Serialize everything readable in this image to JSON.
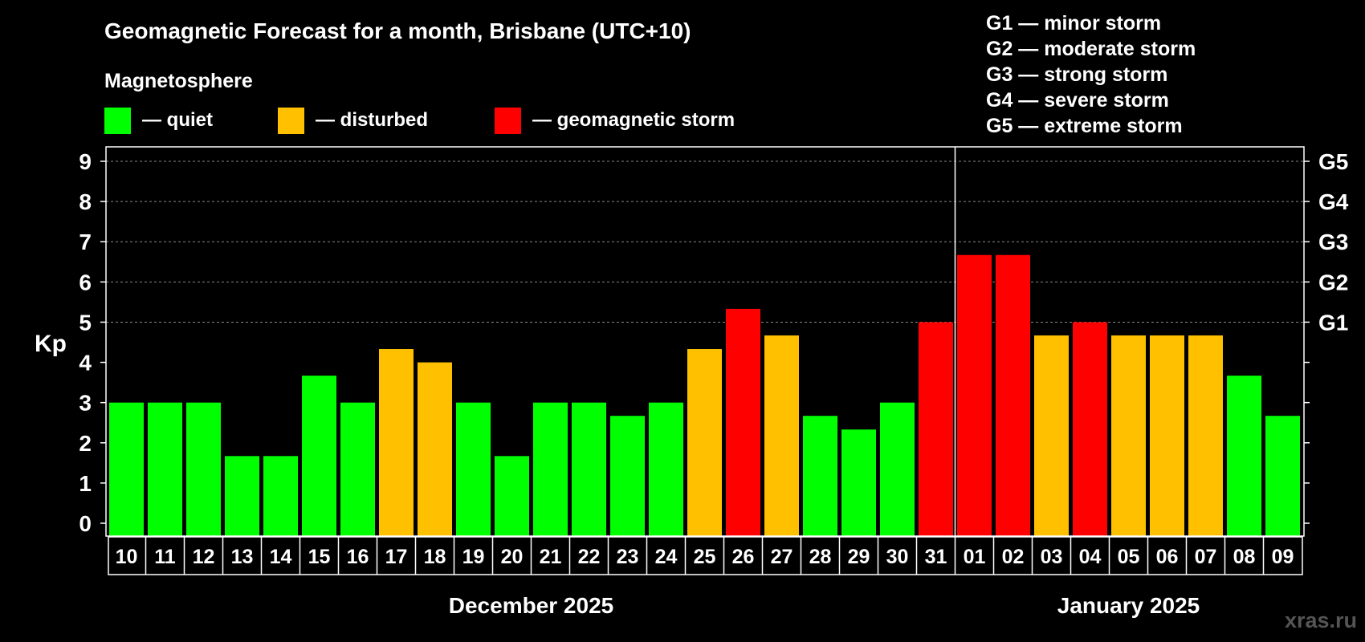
{
  "chart_data": {
    "type": "bar",
    "title": "Geomagnetic Forecast for a month, Brisbane (UTC+10)",
    "legend_title": "Magnetosphere",
    "legend": [
      {
        "key": "quiet",
        "label": "— quiet",
        "color": "#00ff00"
      },
      {
        "key": "disturbed",
        "label": "— disturbed",
        "color": "#ffc000"
      },
      {
        "key": "storm",
        "label": "— geomagnetic storm",
        "color": "#ff0000"
      }
    ],
    "storm_scale": [
      "G1 — minor storm",
      "G2 — moderate storm",
      "G3 — strong storm",
      "G4 — severe storm",
      "G5 — extreme storm"
    ],
    "ylabel": "Kp",
    "ylim": [
      0,
      9
    ],
    "yticks": [
      "0",
      "1",
      "2",
      "3",
      "4",
      "5",
      "6",
      "7",
      "8",
      "9"
    ],
    "right_axis_labels": [
      {
        "kp": 5,
        "label": "G1"
      },
      {
        "kp": 6,
        "label": "G2"
      },
      {
        "kp": 7,
        "label": "G3"
      },
      {
        "kp": 8,
        "label": "G4"
      },
      {
        "kp": 9,
        "label": "G5"
      }
    ],
    "categories": [
      "10",
      "11",
      "12",
      "13",
      "14",
      "15",
      "16",
      "17",
      "18",
      "19",
      "20",
      "21",
      "22",
      "23",
      "24",
      "25",
      "26",
      "27",
      "28",
      "29",
      "30",
      "31",
      "01",
      "02",
      "03",
      "04",
      "05",
      "06",
      "07",
      "08",
      "09"
    ],
    "values": [
      3,
      3,
      3,
      1.67,
      1.67,
      3.67,
      3,
      4.33,
      4,
      3,
      1.67,
      3,
      3,
      2.67,
      3,
      4.33,
      5.33,
      4.67,
      2.67,
      2.33,
      3,
      5,
      6.67,
      6.67,
      4.67,
      5,
      4.67,
      4.67,
      4.67,
      3.67,
      2.67
    ],
    "levels": [
      "quiet",
      "quiet",
      "quiet",
      "quiet",
      "quiet",
      "quiet",
      "quiet",
      "disturbed",
      "disturbed",
      "quiet",
      "quiet",
      "quiet",
      "quiet",
      "quiet",
      "quiet",
      "disturbed",
      "storm",
      "disturbed",
      "quiet",
      "quiet",
      "quiet",
      "storm",
      "storm",
      "storm",
      "disturbed",
      "storm",
      "disturbed",
      "disturbed",
      "disturbed",
      "quiet",
      "quiet"
    ],
    "months": [
      {
        "label": "December 2025",
        "start_index": 0,
        "end_index": 21
      },
      {
        "label": "January 2025",
        "start_index": 22,
        "end_index": 30
      }
    ],
    "month_divider_after_index": 21,
    "grid": true
  },
  "watermark": "xras.ru"
}
